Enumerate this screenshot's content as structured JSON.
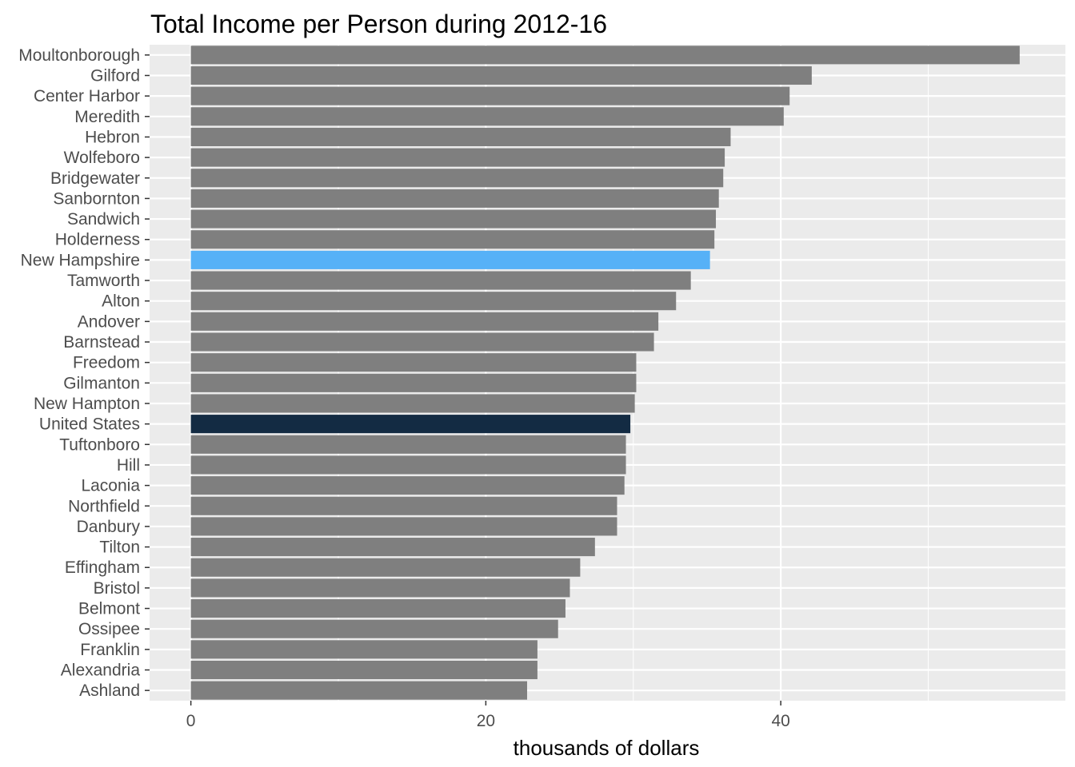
{
  "chart_data": {
    "type": "bar",
    "orientation": "horizontal",
    "title": "Total Income per Person during 2012-16",
    "xlabel": "thousands of dollars",
    "ylabel": "",
    "xlim": [
      -2.8,
      59.3
    ],
    "xticks": [
      0,
      20,
      40
    ],
    "grid": true,
    "categories": [
      "Moultonborough",
      "Gilford",
      "Center Harbor",
      "Meredith",
      "Hebron",
      "Wolfeboro",
      "Bridgewater",
      "Sanbornton",
      "Sandwich",
      "Holderness",
      "New Hampshire",
      "Tamworth",
      "Alton",
      "Andover",
      "Barnstead",
      "Freedom",
      "Gilmanton",
      "New Hampton",
      "United States",
      "Tuftonboro",
      "Hill",
      "Laconia",
      "Northfield",
      "Danbury",
      "Tilton",
      "Effingham",
      "Bristol",
      "Belmont",
      "Ossipee",
      "Franklin",
      "Alexandria",
      "Ashland"
    ],
    "values": [
      56.2,
      42.1,
      40.6,
      40.2,
      36.6,
      36.2,
      36.1,
      35.8,
      35.6,
      35.5,
      35.2,
      33.9,
      32.9,
      31.7,
      31.4,
      30.2,
      30.2,
      30.1,
      29.8,
      29.5,
      29.5,
      29.4,
      28.9,
      28.9,
      27.4,
      26.4,
      25.7,
      25.4,
      24.9,
      23.5,
      23.5,
      22.8
    ],
    "colors": {
      "default": "#7f7f7f",
      "New Hampshire": "#56b1f7",
      "United States": "#132b43",
      "panel_background": "#ebebeb",
      "grid_line": "#ffffff"
    }
  }
}
